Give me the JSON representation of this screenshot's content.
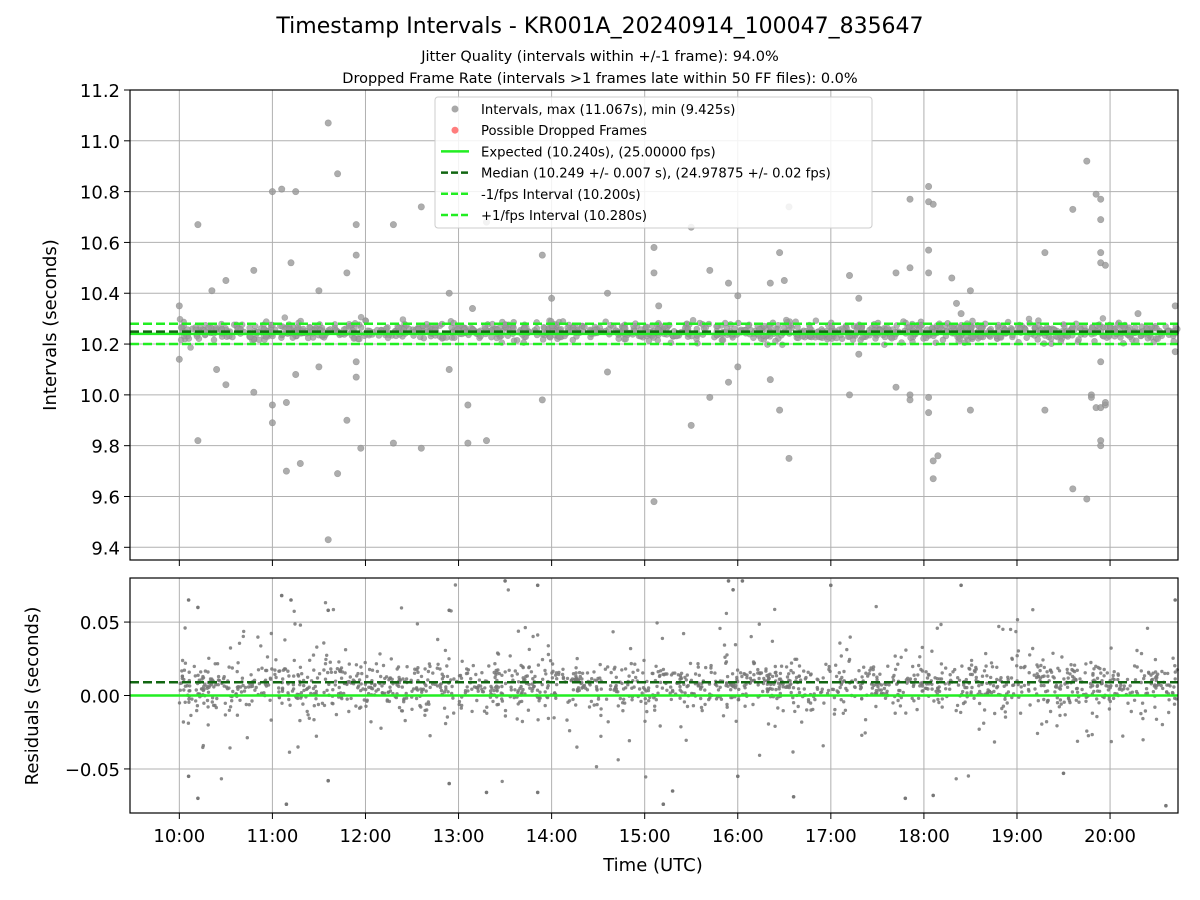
{
  "chart_data": [
    {
      "type": "scatter",
      "title": "Timestamp Intervals - KR001A_20240914_100047_835647",
      "subtitles": [
        "Jitter Quality (intervals within +/-1 frame): 94.0%",
        "Dropped Frame Rate (intervals >1 frames late within 50 FF files): 0.0%"
      ],
      "ylabel": "Intervals (seconds)",
      "xlabel": "",
      "ylim": [
        9.35,
        11.2
      ],
      "yticks": [
        "9.4",
        "9.6",
        "9.8",
        "10.0",
        "10.2",
        "10.4",
        "10.6",
        "10.8",
        "11.0",
        "11.2"
      ],
      "grid": true,
      "legend_position": "top-center",
      "legend": [
        {
          "label": "Intervals, max (11.067s), min (9.425s)",
          "kind": "marker",
          "color": "#999999"
        },
        {
          "label": "Possible Dropped Frames",
          "kind": "marker",
          "color": "#ff6666"
        },
        {
          "label": "Expected (10.240s), (25.00000 fps)",
          "kind": "solid",
          "color": "#22ee22"
        },
        {
          "label": "Median (10.249 +/- 0.007 s), (24.97875 +/- 0.02 fps)",
          "kind": "dashed",
          "color": "#116611"
        },
        {
          "label": "-1/fps Interval (10.200s)",
          "kind": "dashed",
          "color": "#22ee22"
        },
        {
          "label": "+1/fps Interval (10.280s)",
          "kind": "dashed",
          "color": "#22ee22"
        }
      ],
      "reference_lines": {
        "expected": 10.24,
        "median": 10.249,
        "minus_interval": 10.2,
        "plus_interval": 10.28
      },
      "series": [
        {
          "name": "Intervals, max (11.067s), min (9.425s)",
          "approximate": true,
          "outliers": [
            [
              10.0,
              10.35
            ],
            [
              10.0,
              10.14
            ],
            [
              10.2,
              10.67
            ],
            [
              10.2,
              9.82
            ],
            [
              10.35,
              10.41
            ],
            [
              10.4,
              10.1
            ],
            [
              10.5,
              10.45
            ],
            [
              10.5,
              10.04
            ],
            [
              10.8,
              10.49
            ],
            [
              10.8,
              10.01
            ],
            [
              11.0,
              10.8
            ],
            [
              11.0,
              9.96
            ],
            [
              11.0,
              9.89
            ],
            [
              11.1,
              10.81
            ],
            [
              11.15,
              9.7
            ],
            [
              11.15,
              9.97
            ],
            [
              11.2,
              10.52
            ],
            [
              11.25,
              10.8
            ],
            [
              11.25,
              10.08
            ],
            [
              11.3,
              9.73
            ],
            [
              11.5,
              10.41
            ],
            [
              11.5,
              10.11
            ],
            [
              11.6,
              11.07
            ],
            [
              11.6,
              9.43
            ],
            [
              11.7,
              10.87
            ],
            [
              11.7,
              9.69
            ],
            [
              11.8,
              10.48
            ],
            [
              11.8,
              9.9
            ],
            [
              11.9,
              10.67
            ],
            [
              11.9,
              10.55
            ],
            [
              11.9,
              10.13
            ],
            [
              11.9,
              10.07
            ],
            [
              11.95,
              9.79
            ],
            [
              12.3,
              10.67
            ],
            [
              12.3,
              9.81
            ],
            [
              12.6,
              10.74
            ],
            [
              12.6,
              9.79
            ],
            [
              12.9,
              10.4
            ],
            [
              12.9,
              10.1
            ],
            [
              13.1,
              9.96
            ],
            [
              13.1,
              9.81
            ],
            [
              13.15,
              10.34
            ],
            [
              13.3,
              9.82
            ],
            [
              13.3,
              10.68
            ],
            [
              13.9,
              10.55
            ],
            [
              13.9,
              9.98
            ],
            [
              14.0,
              10.38
            ],
            [
              14.6,
              10.4
            ],
            [
              14.6,
              10.09
            ],
            [
              15.1,
              10.58
            ],
            [
              15.1,
              10.48
            ],
            [
              15.1,
              9.58
            ],
            [
              15.15,
              10.35
            ],
            [
              15.5,
              10.66
            ],
            [
              15.5,
              9.88
            ],
            [
              15.7,
              10.49
            ],
            [
              15.7,
              9.99
            ],
            [
              15.9,
              10.44
            ],
            [
              15.9,
              10.05
            ],
            [
              16.0,
              10.39
            ],
            [
              16.0,
              10.11
            ],
            [
              16.35,
              10.44
            ],
            [
              16.35,
              10.06
            ],
            [
              16.45,
              10.56
            ],
            [
              16.45,
              9.94
            ],
            [
              16.5,
              10.45
            ],
            [
              16.55,
              10.74
            ],
            [
              16.55,
              9.75
            ],
            [
              17.2,
              10.47
            ],
            [
              17.2,
              10.0
            ],
            [
              17.3,
              10.38
            ],
            [
              17.3,
              10.16
            ],
            [
              17.7,
              10.48
            ],
            [
              17.7,
              10.03
            ],
            [
              17.85,
              10.77
            ],
            [
              17.85,
              10.5
            ],
            [
              17.85,
              10.0
            ],
            [
              17.85,
              9.98
            ],
            [
              18.05,
              10.82
            ],
            [
              18.05,
              10.76
            ],
            [
              18.05,
              10.57
            ],
            [
              18.05,
              10.48
            ],
            [
              18.05,
              9.99
            ],
            [
              18.05,
              9.93
            ],
            [
              18.1,
              10.75
            ],
            [
              18.1,
              9.74
            ],
            [
              18.1,
              9.67
            ],
            [
              18.15,
              9.76
            ],
            [
              18.3,
              10.46
            ],
            [
              18.35,
              10.36
            ],
            [
              18.4,
              10.32
            ],
            [
              18.5,
              10.41
            ],
            [
              18.5,
              9.94
            ],
            [
              19.3,
              10.56
            ],
            [
              19.3,
              9.94
            ],
            [
              19.6,
              10.73
            ],
            [
              19.6,
              9.63
            ],
            [
              19.75,
              10.92
            ],
            [
              19.75,
              9.59
            ],
            [
              19.8,
              10.0
            ],
            [
              19.8,
              9.99
            ],
            [
              19.85,
              10.79
            ],
            [
              19.85,
              9.95
            ],
            [
              19.9,
              10.77
            ],
            [
              19.9,
              10.69
            ],
            [
              19.9,
              10.56
            ],
            [
              19.9,
              10.52
            ],
            [
              19.9,
              10.13
            ],
            [
              19.9,
              9.95
            ],
            [
              19.9,
              9.82
            ],
            [
              19.9,
              9.8
            ],
            [
              19.95,
              10.51
            ],
            [
              19.95,
              9.96
            ],
            [
              19.95,
              9.97
            ],
            [
              20.3,
              10.32
            ],
            [
              20.7,
              10.35
            ],
            [
              20.7,
              10.17
            ]
          ]
        }
      ]
    },
    {
      "type": "scatter",
      "title": "",
      "xlabel": "Time (UTC)",
      "ylabel": "Residuals (seconds)",
      "xlim": [
        9.47,
        20.73
      ],
      "ylim": [
        -0.08,
        0.08
      ],
      "yticks": [
        "−0.05",
        "0.00",
        "0.05"
      ],
      "xticks": [
        "10:00",
        "11:00",
        "12:00",
        "13:00",
        "14:00",
        "15:00",
        "16:00",
        "17:00",
        "18:00",
        "19:00",
        "20:00"
      ],
      "grid": true,
      "reference_lines": {
        "zero": 0.0,
        "median_offset": 0.009
      },
      "series": [
        {
          "name": "",
          "approximate": true,
          "outliers": [
            [
              10.1,
              0.065
            ],
            [
              10.1,
              -0.055
            ],
            [
              10.2,
              -0.07
            ],
            [
              10.2,
              0.06
            ],
            [
              11.1,
              0.068
            ],
            [
              11.15,
              -0.074
            ],
            [
              11.2,
              0.065
            ],
            [
              11.6,
              0.058
            ],
            [
              11.6,
              -0.058
            ],
            [
              12.9,
              0.058
            ],
            [
              12.9,
              -0.06
            ],
            [
              13.3,
              -0.066
            ],
            [
              13.5,
              0.078
            ],
            [
              13.85,
              0.075
            ],
            [
              13.85,
              -0.066
            ],
            [
              15.2,
              -0.074
            ],
            [
              15.3,
              -0.065
            ],
            [
              15.9,
              0.078
            ],
            [
              15.95,
              0.072
            ],
            [
              16.0,
              -0.055
            ],
            [
              16.05,
              0.078
            ],
            [
              16.6,
              -0.069
            ],
            [
              17.0,
              0.075
            ],
            [
              17.8,
              -0.07
            ],
            [
              18.1,
              -0.068
            ],
            [
              18.4,
              0.075
            ],
            [
              19.5,
              -0.053
            ],
            [
              20.6,
              -0.075
            ],
            [
              20.7,
              0.065
            ]
          ]
        }
      ]
    }
  ]
}
